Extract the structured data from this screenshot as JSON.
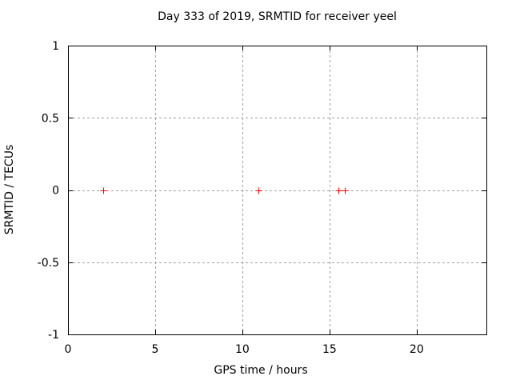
{
  "figure": {
    "background": "#ffffff",
    "text_color": "#000000"
  },
  "chart_data": {
    "type": "scatter",
    "title": "Day 333 of 2019, SRMTID for receiver yeel",
    "xlabel": "GPS time / hours",
    "ylabel": "SRMTID / TECUs",
    "xlim": [
      0,
      24
    ],
    "ylim": [
      -1,
      1
    ],
    "xticks": [
      {
        "v": 0,
        "label": "0"
      },
      {
        "v": 5,
        "label": "5"
      },
      {
        "v": 10,
        "label": "10"
      },
      {
        "v": 15,
        "label": "15"
      },
      {
        "v": 20,
        "label": "20"
      }
    ],
    "yticks": [
      {
        "v": -1,
        "label": "-1"
      },
      {
        "v": -0.5,
        "label": "-0.5"
      },
      {
        "v": 0,
        "label": "0"
      },
      {
        "v": 0.5,
        "label": "0.5"
      },
      {
        "v": 1,
        "label": "1"
      }
    ],
    "grid": true,
    "legend": "none",
    "marker": "plus",
    "colors": {
      "marker": "#ff0000",
      "grid": "#a0a0a0",
      "border": "#000000"
    },
    "series": [
      {
        "name": "SRMTID",
        "points": [
          [
            2.0,
            0.0
          ],
          [
            10.9,
            0.0
          ],
          [
            15.5,
            0.0
          ],
          [
            15.9,
            0.0
          ]
        ]
      }
    ]
  }
}
